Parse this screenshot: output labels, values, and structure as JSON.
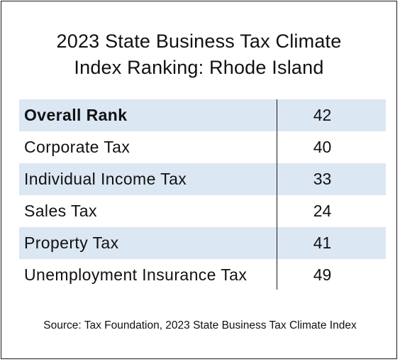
{
  "title": {
    "line1": "2023 State Business Tax Climate",
    "line2": "Index Ranking: Rhode Island"
  },
  "rows": [
    {
      "label": "Overall Rank",
      "value": "42",
      "bold": true,
      "shaded": true
    },
    {
      "label": "Corporate Tax",
      "value": "40",
      "bold": false,
      "shaded": false
    },
    {
      "label": "Individual Income Tax",
      "value": "33",
      "bold": false,
      "shaded": true
    },
    {
      "label": "Sales Tax",
      "value": "24",
      "bold": false,
      "shaded": false
    },
    {
      "label": "Property Tax",
      "value": "41",
      "bold": false,
      "shaded": true
    },
    {
      "label": "Unemployment Insurance Tax",
      "value": "49",
      "bold": false,
      "shaded": false
    }
  ],
  "source": "Source: Tax Foundation, 2023 State Business Tax Climate Index",
  "colors": {
    "row_shade": "#dce7f4",
    "border": "#1a1a1a",
    "text": "#111111"
  }
}
